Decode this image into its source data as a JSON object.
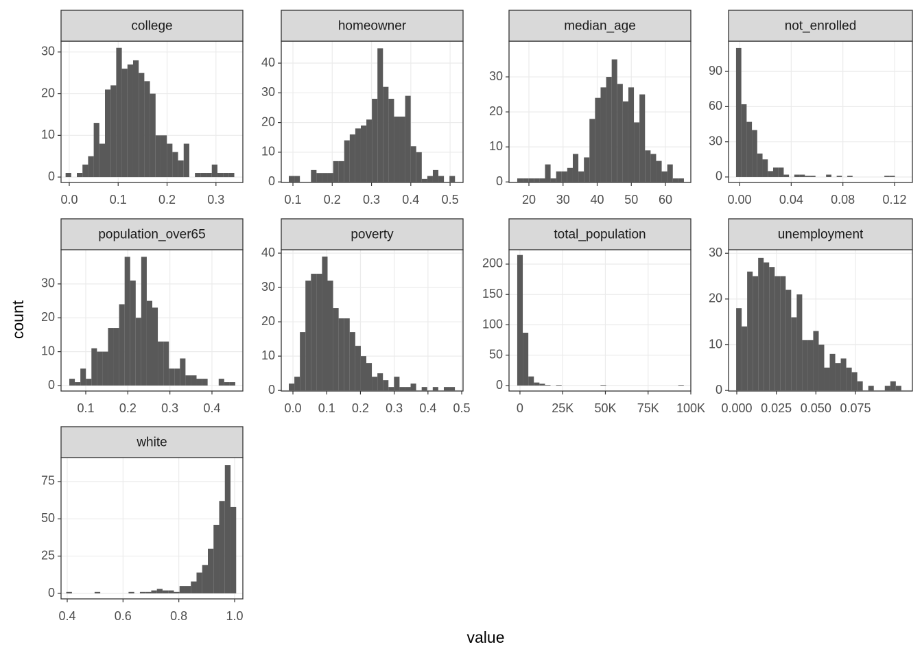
{
  "x_label": "value",
  "y_label": "count",
  "chart_data": [
    {
      "type": "histogram",
      "title": "college",
      "color": "#595959",
      "grid": true,
      "bins": [
        -0.0075,
        0.004,
        0.0155,
        0.027,
        0.0385,
        0.05,
        0.0615,
        0.073,
        0.0845,
        0.096,
        0.1075,
        0.119,
        0.1305,
        0.142,
        0.1535,
        0.165,
        0.1765,
        0.188,
        0.1995,
        0.211,
        0.2225,
        0.234,
        0.2455,
        0.257,
        0.2685,
        0.28,
        0.2915,
        0.303,
        0.3145,
        0.326,
        0.3375
      ],
      "counts": [
        1,
        0,
        1,
        3,
        5,
        13,
        8,
        21,
        22,
        31,
        26,
        27,
        28,
        25,
        23,
        20,
        10,
        10,
        8,
        6,
        4,
        8,
        0,
        1,
        1,
        1,
        3,
        1,
        1,
        1
      ],
      "xlim": [
        -0.0168,
        0.355
      ],
      "ylim": [
        -1.3,
        32.6
      ],
      "xticks": [
        {
          "value": 0,
          "label": "0.0"
        },
        0.1,
        0.2,
        0.3
      ],
      "yticks": [
        0,
        10,
        20,
        30
      ]
    },
    {
      "type": "histogram",
      "title": "homeowner",
      "color": "#595959",
      "grid": true,
      "bins": [
        0.0895,
        0.1036,
        0.1177,
        0.1318,
        0.1459,
        0.16,
        0.1741,
        0.1882,
        0.2023,
        0.2164,
        0.2305,
        0.2446,
        0.2587,
        0.2728,
        0.2869,
        0.301,
        0.3151,
        0.3292,
        0.3433,
        0.3574,
        0.3715,
        0.3856,
        0.3997,
        0.4138,
        0.4279,
        0.442,
        0.4561,
        0.4702,
        0.4843,
        0.4984,
        0.5125
      ],
      "counts": [
        2,
        2,
        0,
        0,
        4,
        3,
        3,
        3,
        7,
        7,
        14,
        16,
        18,
        19,
        21,
        28,
        45,
        32,
        28,
        22,
        22,
        29,
        12,
        10,
        1,
        2,
        4,
        2,
        0,
        2
      ],
      "xlim": [
        0.0703,
        0.533
      ],
      "ylim": [
        -0.19,
        47.4
      ],
      "xticks": [
        0.1,
        0.2,
        0.3,
        0.4,
        0.5
      ],
      "yticks": [
        0,
        10,
        20,
        30,
        40
      ]
    },
    {
      "type": "histogram",
      "title": "median_age",
      "color": "#595959",
      "grid": true,
      "bins": [
        16.58,
        18.208,
        19.836,
        21.464,
        23.092,
        24.72,
        26.348,
        27.976,
        29.604,
        31.232,
        32.86,
        34.488,
        36.116,
        37.744,
        39.372,
        41.0,
        42.628,
        44.256,
        45.884,
        47.512,
        49.14,
        50.768,
        52.396,
        54.024,
        55.652,
        57.28,
        58.908,
        60.536,
        62.164,
        63.792,
        65.42
      ],
      "counts": [
        1,
        1,
        1,
        1,
        1,
        5,
        1,
        3,
        3,
        4,
        8,
        3,
        7,
        18,
        24,
        27,
        30,
        35,
        28,
        23,
        27,
        17,
        25,
        9,
        8,
        6,
        3,
        5,
        1,
        1
      ],
      "xlim": [
        14.17,
        67.44
      ],
      "ylim": [
        -0.16,
        40.2
      ],
      "xticks": [
        20,
        30,
        40,
        50,
        60
      ],
      "yticks": [
        0,
        10,
        20,
        30
      ]
    },
    {
      "type": "histogram",
      "title": "not_enrolled",
      "color": "#595959",
      "grid": true,
      "bins": [
        -0.0027,
        0.0014,
        0.0055,
        0.0096,
        0.0137,
        0.0178,
        0.0219,
        0.026,
        0.0301,
        0.0342,
        0.0383,
        0.0424,
        0.0465,
        0.0506,
        0.0547,
        0.0588,
        0.0629,
        0.067,
        0.0711,
        0.0752,
        0.0793,
        0.0834,
        0.0875,
        0.0916,
        0.0957,
        0.0998,
        0.1039,
        0.108,
        0.1121,
        0.1162,
        0.1203
      ],
      "counts": [
        110,
        62,
        47,
        40,
        20,
        15,
        5,
        8,
        8,
        2,
        0,
        2,
        2,
        1,
        1,
        0,
        0,
        2,
        0,
        1,
        0,
        1,
        0,
        0,
        0,
        0,
        0,
        0,
        1,
        1
      ],
      "xlim": [
        -0.0085,
        0.1338
      ],
      "ylim": [
        -4.7,
        115.8
      ],
      "xticks": [
        {
          "value": 0,
          "label": "0.00"
        },
        0.04,
        0.08,
        0.12
      ],
      "yticks": [
        0,
        30,
        60,
        90
      ]
    },
    {
      "type": "histogram",
      "title": "population_over65",
      "color": "#595959",
      "grid": true,
      "bins": [
        0.0609,
        0.07405,
        0.0872,
        0.10035,
        0.1135,
        0.12665,
        0.1398,
        0.15295,
        0.1661,
        0.17925,
        0.1924,
        0.20555,
        0.2187,
        0.23185,
        0.245,
        0.25815,
        0.2713,
        0.28445,
        0.2976,
        0.31075,
        0.3239,
        0.33705,
        0.3502,
        0.36335,
        0.3765,
        0.38965,
        0.4028,
        0.41595,
        0.4291,
        0.44225,
        0.4554
      ],
      "counts": [
        2,
        1,
        5,
        2,
        11,
        10,
        10,
        17,
        17,
        24,
        38,
        31,
        20,
        38,
        25,
        23,
        13,
        13,
        5,
        5,
        8,
        3,
        3,
        2,
        2,
        0,
        0,
        2,
        1,
        1
      ],
      "xlim": [
        0.0413,
        0.4734
      ],
      "ylim": [
        -1.62,
        40.1
      ],
      "xticks": [
        0.1,
        0.2,
        0.3,
        0.4
      ],
      "yticks": [
        0,
        10,
        20,
        30
      ]
    },
    {
      "type": "histogram",
      "title": "poverty",
      "color": "#595959",
      "grid": true,
      "bins": [
        -0.0122,
        0.0042,
        0.0206,
        0.037,
        0.0534,
        0.0698,
        0.0862,
        0.1026,
        0.119,
        0.1354,
        0.1518,
        0.1682,
        0.1846,
        0.201,
        0.2174,
        0.2338,
        0.2502,
        0.2666,
        0.283,
        0.2994,
        0.3158,
        0.3322,
        0.3486,
        0.365,
        0.3814,
        0.3978,
        0.4142,
        0.4306,
        0.447,
        0.4634,
        0.4798
      ],
      "counts": [
        2,
        4,
        17,
        32,
        34,
        34,
        39,
        32,
        24,
        21,
        21,
        17,
        13,
        10,
        8,
        4,
        5,
        3,
        1,
        4,
        1,
        1,
        2,
        0,
        1,
        0,
        1,
        0,
        1,
        1
      ],
      "xlim": [
        -0.0346,
        0.504
      ],
      "ylim": [
        -0.166,
        41.0
      ],
      "xticks": [
        {
          "value": 0,
          "label": "0.0"
        },
        0.1,
        0.2,
        0.3,
        0.4,
        0.5
      ],
      "yticks": [
        0,
        10,
        20,
        30,
        40
      ]
    },
    {
      "type": "histogram",
      "title": "total_population",
      "color": "#595959",
      "grid": true,
      "bins": [
        -1600,
        1650,
        4900,
        8150,
        11400,
        14650,
        17900,
        21150,
        24400,
        27650,
        30900,
        34150,
        37400,
        40650,
        43900,
        47150,
        50400,
        53650,
        56900,
        60150,
        63400,
        66650,
        69900,
        73150,
        76400,
        79650,
        82900,
        86150,
        89400,
        92650,
        95900
      ],
      "counts": [
        215,
        87,
        15,
        5,
        3,
        1,
        0,
        1,
        0,
        0,
        0,
        0,
        0,
        0,
        0,
        1,
        0,
        0,
        0,
        0,
        0,
        0,
        0,
        0,
        0,
        0,
        0,
        0,
        0,
        1
      ],
      "xlim": [
        -6400,
        100000
      ],
      "ylim": [
        -9,
        223.7
      ],
      "xticks": [
        0,
        {
          "value": 25000,
          "label": "25K"
        },
        {
          "value": 50000,
          "label": "50K"
        },
        {
          "value": 75000,
          "label": "75K"
        },
        {
          "value": 100000,
          "label": "100K"
        }
      ],
      "yticks": [
        0,
        50,
        100,
        150,
        200
      ]
    },
    {
      "type": "histogram",
      "title": "unemployment",
      "color": "#595959",
      "grid": true,
      "bins": [
        -0.0004,
        0.00308,
        0.00656,
        0.01004,
        0.01352,
        0.017,
        0.02048,
        0.02396,
        0.02744,
        0.03092,
        0.0344,
        0.03788,
        0.04136,
        0.04484,
        0.04832,
        0.0518,
        0.05528,
        0.05876,
        0.06224,
        0.06572,
        0.0692,
        0.07268,
        0.07616,
        0.07964,
        0.08312,
        0.0866,
        0.09008,
        0.09356,
        0.09704,
        0.10052,
        0.104
      ],
      "counts": [
        18,
        14,
        26,
        25,
        29,
        28,
        27,
        25,
        25,
        22,
        16,
        21,
        11,
        11,
        13,
        10,
        5,
        8,
        6,
        7,
        5,
        4,
        2,
        0,
        1,
        0,
        0,
        1,
        2,
        1
      ],
      "xlim": [
        -0.0052,
        0.111
      ],
      "ylim": [
        -0.124,
        30.78
      ],
      "xticks": [
        {
          "value": 0,
          "label": "0.000"
        },
        0.025,
        {
          "value": 0.05,
          "label": "0.050"
        },
        0.075
      ],
      "yticks": [
        0,
        10,
        20,
        30
      ]
    },
    {
      "type": "histogram",
      "title": "white",
      "color": "#595959",
      "grid": true,
      "bins": [
        0.3966,
        0.4169,
        0.4372,
        0.4575,
        0.4778,
        0.4981,
        0.5184,
        0.5387,
        0.559,
        0.5793,
        0.5996,
        0.6199,
        0.6402,
        0.6605,
        0.6808,
        0.7011,
        0.7214,
        0.7417,
        0.762,
        0.7823,
        0.8026,
        0.8229,
        0.8432,
        0.8635,
        0.8838,
        0.9041,
        0.9244,
        0.9447,
        0.965,
        0.9853,
        1.0056
      ],
      "counts": [
        1,
        0,
        0,
        0,
        0,
        1,
        0,
        0,
        0,
        0,
        0,
        1,
        0,
        1,
        1,
        2,
        3,
        2,
        2,
        1,
        5,
        5,
        8,
        14,
        19,
        30,
        46,
        62,
        86,
        58
      ],
      "xlim": [
        0.3779,
        1.0295
      ],
      "ylim": [
        -3.68,
        91.1
      ],
      "xticks": [
        0.4,
        0.6,
        0.8,
        {
          "value": 1,
          "label": "1.0"
        }
      ],
      "yticks": [
        0,
        25,
        50,
        75
      ]
    }
  ]
}
